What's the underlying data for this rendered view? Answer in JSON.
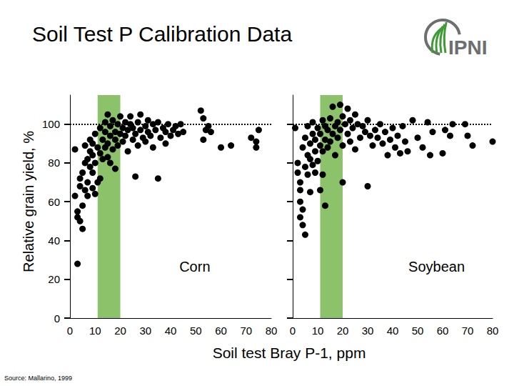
{
  "title": "Soil Test P Calibration Data",
  "logo": "IPNI",
  "source": "Source: Mallarino, 1999",
  "xlabel": "Soil test Bray P-1, ppm",
  "ylabel": "Relative grain yield, %",
  "chart_data": [
    {
      "type": "scatter",
      "title": "Corn",
      "color": "#000000",
      "marker": "circle",
      "grid": false,
      "x": [
        3,
        3,
        3,
        2,
        2,
        4,
        4,
        5,
        5,
        4,
        5,
        6,
        6,
        6,
        7,
        7,
        7,
        8,
        8,
        8,
        9,
        9,
        9,
        9,
        10,
        10,
        10,
        11,
        11,
        12,
        12,
        12,
        13,
        13,
        14,
        14,
        14,
        15,
        15,
        15,
        16,
        16,
        17,
        17,
        18,
        18,
        19,
        19,
        20,
        20,
        21,
        21,
        22,
        22,
        23,
        23,
        24,
        24,
        25,
        25,
        26,
        26,
        27,
        27,
        28,
        28,
        29,
        30,
        30,
        31,
        31,
        32,
        33,
        33,
        34,
        35,
        35,
        36,
        37,
        38,
        38,
        39,
        40,
        41,
        42,
        43,
        44,
        45,
        52,
        53,
        54,
        53,
        55,
        56,
        60,
        64,
        72,
        74,
        75,
        74,
        18,
        16
      ],
      "values": [
        28,
        55,
        52,
        63,
        87,
        50,
        68,
        46,
        58,
        72,
        75,
        66,
        80,
        89,
        70,
        63,
        82,
        78,
        86,
        92,
        67,
        75,
        84,
        90,
        64,
        80,
        95,
        70,
        88,
        72,
        85,
        98,
        92,
        82,
        96,
        88,
        101,
        90,
        105,
        83,
        94,
        99,
        87,
        102,
        96,
        92,
        100,
        89,
        104,
        95,
        98,
        91,
        101,
        94,
        97,
        86,
        100,
        104,
        92,
        98,
        95,
        73,
        101,
        89,
        97,
        105,
        93,
        99,
        91,
        102,
        96,
        94,
        100,
        88,
        97,
        72,
        101,
        93,
        98,
        90,
        96,
        100,
        94,
        97,
        99,
        95,
        100,
        96,
        107,
        103,
        97,
        92,
        99,
        96,
        88,
        89,
        93,
        88,
        97,
        91,
        77,
        80
      ],
      "xlim": [
        0,
        80
      ],
      "xticks": [
        0,
        10,
        20,
        30,
        40,
        50,
        60,
        70,
        80
      ],
      "ylim": [
        0,
        115
      ],
      "yticks": [
        0,
        20,
        40,
        60,
        80,
        100
      ],
      "band": [
        11,
        20
      ],
      "reference_line": 100
    },
    {
      "type": "scatter",
      "title": "Soybean",
      "color": "#000000",
      "marker": "circle",
      "grid": false,
      "tick_labels": "x",
      "x": [
        1,
        2,
        2,
        3,
        3,
        3,
        3,
        4,
        4,
        4,
        5,
        5,
        5,
        6,
        6,
        6,
        7,
        7,
        7,
        8,
        8,
        8,
        9,
        9,
        9,
        10,
        10,
        11,
        11,
        11,
        12,
        12,
        12,
        13,
        13,
        13,
        14,
        14,
        15,
        15,
        16,
        16,
        17,
        17,
        18,
        18,
        19,
        19,
        20,
        20,
        20,
        21,
        22,
        22,
        23,
        23,
        24,
        25,
        25,
        26,
        27,
        28,
        29,
        30,
        30,
        31,
        32,
        33,
        34,
        35,
        36,
        37,
        38,
        39,
        40,
        41,
        42,
        43,
        44,
        45,
        46,
        48,
        50,
        52,
        54,
        55,
        56,
        60,
        61,
        63,
        64,
        69,
        70,
        72,
        80
      ],
      "values": [
        98,
        80,
        75,
        66,
        70,
        60,
        52,
        56,
        48,
        88,
        43,
        78,
        93,
        84,
        74,
        99,
        90,
        82,
        65,
        79,
        95,
        101,
        86,
        75,
        92,
        81,
        98,
        89,
        95,
        66,
        74,
        86,
        102,
        58,
        92,
        99,
        97,
        88,
        103,
        91,
        109,
        95,
        84,
        99,
        101,
        93,
        110,
        97,
        70,
        104,
        89,
        100,
        95,
        108,
        91,
        102,
        98,
        87,
        105,
        100,
        93,
        99,
        96,
        68,
        102,
        94,
        89,
        97,
        93,
        100,
        90,
        96,
        84,
        92,
        98,
        88,
        94,
        85,
        99,
        91,
        86,
        102,
        93,
        88,
        101,
        84,
        96,
        85,
        97,
        94,
        100,
        100,
        94,
        89,
        91
      ],
      "xlim": [
        0,
        80
      ],
      "xticks": [
        0,
        10,
        20,
        30,
        40,
        50,
        60,
        70,
        80
      ],
      "ylim": [
        0,
        115
      ],
      "yticks": [
        0,
        20,
        40,
        60,
        80,
        100
      ],
      "band": [
        11,
        20
      ],
      "reference_line": 100
    }
  ]
}
